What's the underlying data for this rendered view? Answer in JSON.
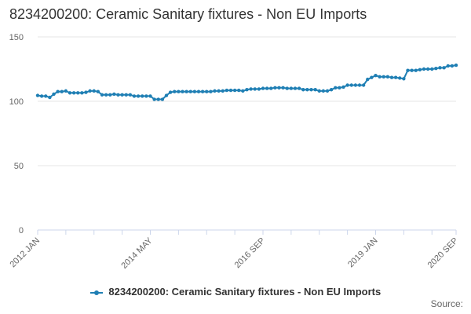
{
  "colors": {
    "series": "#1f7fb4",
    "grid": "#e6e6e6",
    "axis_text": "#666666",
    "axis_line": "#ccd6eb"
  },
  "credits": "Source:",
  "chart_data": {
    "type": "line",
    "title": "8234200200: Ceramic Sanitary fixtures - Non EU Imports",
    "xlabel": "",
    "ylabel": "",
    "ylim": [
      0,
      150
    ],
    "y_ticks": [
      0,
      50,
      100,
      150
    ],
    "grid": true,
    "legend_position": "bottom-center",
    "x_tick_labels": [
      "2012 JAN",
      "2014 MAY",
      "2016 SEP",
      "2019 JAN",
      "2020 SEP"
    ],
    "x_tick_indices": [
      0,
      28,
      56,
      84,
      104
    ],
    "x_minor_tick_indices": [
      0,
      7,
      14,
      21,
      28,
      35,
      42,
      49,
      56,
      63,
      70,
      77,
      84,
      91,
      98,
      104
    ],
    "x": [
      "2012-01",
      "2012-02",
      "2012-03",
      "2012-04",
      "2012-05",
      "2012-06",
      "2012-07",
      "2012-08",
      "2012-09",
      "2012-10",
      "2012-11",
      "2012-12",
      "2013-01",
      "2013-02",
      "2013-03",
      "2013-04",
      "2013-05",
      "2013-06",
      "2013-07",
      "2013-08",
      "2013-09",
      "2013-10",
      "2013-11",
      "2013-12",
      "2014-01",
      "2014-02",
      "2014-03",
      "2014-04",
      "2014-05",
      "2014-06",
      "2014-07",
      "2014-08",
      "2014-09",
      "2014-10",
      "2014-11",
      "2014-12",
      "2015-01",
      "2015-02",
      "2015-03",
      "2015-04",
      "2015-05",
      "2015-06",
      "2015-07",
      "2015-08",
      "2015-09",
      "2015-10",
      "2015-11",
      "2015-12",
      "2016-01",
      "2016-02",
      "2016-03",
      "2016-04",
      "2016-05",
      "2016-06",
      "2016-07",
      "2016-08",
      "2016-09",
      "2016-10",
      "2016-11",
      "2016-12",
      "2017-01",
      "2017-02",
      "2017-03",
      "2017-04",
      "2017-05",
      "2017-06",
      "2017-07",
      "2017-08",
      "2017-09",
      "2017-10",
      "2017-11",
      "2017-12",
      "2018-01",
      "2018-02",
      "2018-03",
      "2018-04",
      "2018-05",
      "2018-06",
      "2018-07",
      "2018-08",
      "2018-09",
      "2018-10",
      "2018-11",
      "2018-12",
      "2019-01",
      "2019-02",
      "2019-03",
      "2019-04",
      "2019-05",
      "2019-06",
      "2019-07",
      "2019-08",
      "2019-09",
      "2019-10",
      "2019-11",
      "2019-12",
      "2020-01",
      "2020-02",
      "2020-03",
      "2020-04",
      "2020-05",
      "2020-06",
      "2020-07",
      "2020-08",
      "2020-09"
    ],
    "series": [
      {
        "name": "8234200200: Ceramic Sanitary fixtures - Non EU Imports",
        "values": [
          104.5,
          104,
          104,
          103,
          105.5,
          107.5,
          107.5,
          108,
          106.5,
          106.5,
          106.5,
          106.5,
          107,
          108,
          108,
          107.5,
          105,
          105,
          105,
          105.5,
          105,
          105,
          105,
          105,
          104,
          104,
          104,
          104,
          104,
          101.5,
          101.5,
          101.5,
          104.5,
          107,
          107.5,
          107.5,
          107.5,
          107.5,
          107.5,
          107.5,
          107.5,
          107.5,
          107.5,
          107.5,
          108,
          108,
          108,
          108.5,
          108.5,
          108.5,
          108.5,
          108,
          109,
          109.5,
          109.5,
          109.5,
          110,
          110,
          110,
          110.5,
          110.5,
          110.5,
          110,
          110,
          110,
          110,
          109,
          109,
          109,
          109,
          108,
          108,
          108,
          109,
          110.5,
          110.5,
          111,
          112.5,
          112.5,
          112.5,
          112.5,
          112.5,
          117,
          118.5,
          120,
          119,
          119,
          119,
          118.5,
          118.5,
          118,
          117.5,
          124,
          124,
          124,
          124.5,
          125,
          125,
          125,
          125.5,
          126,
          126,
          127.5,
          127.5,
          128
        ]
      }
    ]
  }
}
